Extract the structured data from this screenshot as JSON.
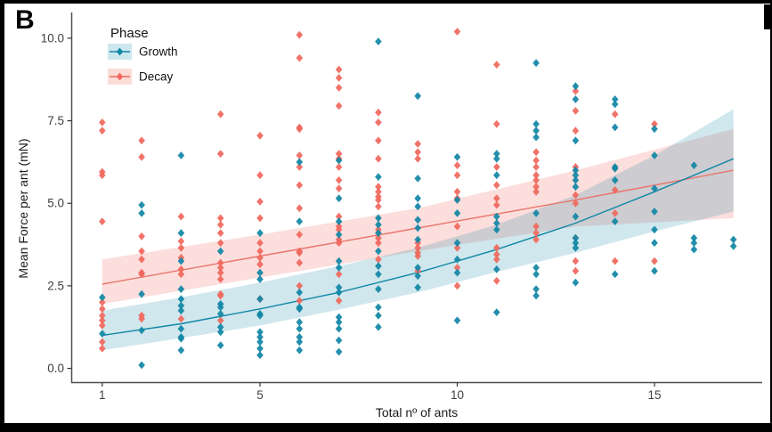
{
  "figure": {
    "panel_label": "B"
  },
  "legend": {
    "title": "Phase",
    "position": "top-left-inside",
    "items": [
      {
        "label": "Growth",
        "color": "#1287A6",
        "swatch_fill": "#CDE7F0"
      },
      {
        "label": "Decay",
        "color": "#F0685E",
        "swatch_fill": "#FBDCD7"
      }
    ]
  },
  "chart_data": {
    "type": "scatter",
    "title": "",
    "xlabel": "Total nº of ants",
    "ylabel": "Mean Force per ant (mN)",
    "x_ticks": [
      1,
      5,
      10,
      15
    ],
    "y_ticks": [
      "0.0",
      "2.5",
      "5.0",
      "7.5",
      "10.0"
    ],
    "y_tick_values": [
      0,
      2.5,
      5,
      7.5,
      10
    ],
    "xlim": [
      0.215,
      17.73
    ],
    "ylim": [
      -0.43,
      10.78
    ],
    "grid": false,
    "point_shape": "filled-diamond",
    "series": [
      {
        "name": "Decay",
        "point_color": "#F0685E",
        "line_color": "#E8756B",
        "band_fill": "rgba(242,104,94,0.22)",
        "trend": {
          "x": [
            1,
            5,
            9,
            13,
            17
          ],
          "y": [
            2.55,
            3.4,
            4.25,
            5.1,
            6.0
          ]
        },
        "band": {
          "x": [
            1,
            5,
            9,
            13,
            17
          ],
          "upper": [
            3.3,
            4.05,
            4.85,
            6.0,
            7.25
          ],
          "lower": [
            1.95,
            2.75,
            3.55,
            4.3,
            4.55
          ]
        },
        "points": [
          [
            1,
            7.45
          ],
          [
            1,
            7.2
          ],
          [
            1,
            5.95
          ],
          [
            1,
            5.85
          ],
          [
            1,
            4.45
          ],
          [
            1,
            2.0
          ],
          [
            1,
            1.8
          ],
          [
            1,
            1.6
          ],
          [
            1,
            1.45
          ],
          [
            1,
            1.3
          ],
          [
            1,
            0.8
          ],
          [
            1,
            0.6
          ],
          [
            2,
            6.9
          ],
          [
            2,
            6.4
          ],
          [
            2,
            4.0
          ],
          [
            2,
            3.55
          ],
          [
            2,
            3.3
          ],
          [
            2,
            2.9
          ],
          [
            2,
            2.85
          ],
          [
            2,
            1.6
          ],
          [
            2,
            1.5
          ],
          [
            3,
            4.6
          ],
          [
            3,
            3.85
          ],
          [
            3,
            3.65
          ],
          [
            3,
            3.35
          ],
          [
            3,
            3.0
          ],
          [
            3,
            2.85
          ],
          [
            3,
            1.5
          ],
          [
            4,
            7.7
          ],
          [
            4,
            6.5
          ],
          [
            4,
            4.55
          ],
          [
            4,
            4.35
          ],
          [
            4,
            4.1
          ],
          [
            4,
            3.8
          ],
          [
            4,
            3.2
          ],
          [
            4,
            3.05
          ],
          [
            4,
            2.9
          ],
          [
            4,
            2.7
          ],
          [
            4,
            2.25
          ],
          [
            4,
            2.2
          ],
          [
            4,
            1.45
          ],
          [
            5,
            7.05
          ],
          [
            5,
            5.85
          ],
          [
            5,
            5.05
          ],
          [
            5,
            4.55
          ],
          [
            5,
            3.8
          ],
          [
            5,
            3.55
          ],
          [
            5,
            3.35
          ],
          [
            5,
            3.15
          ],
          [
            5,
            2.1
          ],
          [
            6,
            10.1
          ],
          [
            6,
            9.4
          ],
          [
            6,
            7.3
          ],
          [
            6,
            7.25
          ],
          [
            6,
            6.45
          ],
          [
            6,
            6.1
          ],
          [
            6,
            5.55
          ],
          [
            6,
            4.85
          ],
          [
            6,
            4.05
          ],
          [
            6,
            3.55
          ],
          [
            6,
            3.5
          ],
          [
            6,
            3.2
          ],
          [
            6,
            2.5
          ],
          [
            6,
            2.05
          ],
          [
            7,
            9.05
          ],
          [
            7,
            8.8
          ],
          [
            7,
            8.5
          ],
          [
            7,
            7.95
          ],
          [
            7,
            6.5
          ],
          [
            7,
            6.35
          ],
          [
            7,
            6.1
          ],
          [
            7,
            5.7
          ],
          [
            7,
            5.45
          ],
          [
            7,
            4.6
          ],
          [
            7,
            4.3
          ],
          [
            7,
            4.2
          ],
          [
            7,
            3.9
          ],
          [
            7,
            3.8
          ],
          [
            7,
            2.85
          ],
          [
            7,
            2.05
          ],
          [
            8,
            7.75
          ],
          [
            8,
            7.45
          ],
          [
            8,
            6.9
          ],
          [
            8,
            6.35
          ],
          [
            8,
            5.5
          ],
          [
            8,
            5.35
          ],
          [
            8,
            5.2
          ],
          [
            8,
            5.1
          ],
          [
            8,
            4.9
          ],
          [
            8,
            4.2
          ],
          [
            8,
            3.95
          ],
          [
            8,
            3.8
          ],
          [
            8,
            3.3
          ],
          [
            9,
            6.8
          ],
          [
            9,
            6.55
          ],
          [
            9,
            6.35
          ],
          [
            9,
            3.8
          ],
          [
            9,
            3.65
          ],
          [
            9,
            3.5
          ],
          [
            9,
            3.4
          ],
          [
            9,
            2.95
          ],
          [
            10,
            10.2
          ],
          [
            10,
            6.15
          ],
          [
            10,
            5.85
          ],
          [
            10,
            5.35
          ],
          [
            10,
            5.15
          ],
          [
            10,
            4.3
          ],
          [
            10,
            3.65
          ],
          [
            10,
            3.05
          ],
          [
            10,
            2.5
          ],
          [
            11,
            9.2
          ],
          [
            11,
            7.4
          ],
          [
            11,
            6.1
          ],
          [
            11,
            5.55
          ],
          [
            11,
            5.15
          ],
          [
            11,
            4.95
          ],
          [
            11,
            3.65
          ],
          [
            11,
            3.45
          ],
          [
            11,
            3.3
          ],
          [
            11,
            2.65
          ],
          [
            12,
            6.55
          ],
          [
            12,
            6.3
          ],
          [
            12,
            6.1
          ],
          [
            12,
            5.85
          ],
          [
            12,
            5.7
          ],
          [
            12,
            5.5
          ],
          [
            12,
            5.35
          ],
          [
            12,
            4.3
          ],
          [
            12,
            4.1
          ],
          [
            12,
            3.9
          ],
          [
            13,
            8.4
          ],
          [
            13,
            7.8
          ],
          [
            13,
            7.2
          ],
          [
            13,
            6.1
          ],
          [
            13,
            5.25
          ],
          [
            13,
            5.0
          ],
          [
            13,
            3.95
          ],
          [
            13,
            3.25
          ],
          [
            13,
            2.95
          ],
          [
            14,
            7.7
          ],
          [
            14,
            5.4
          ],
          [
            14,
            4.7
          ],
          [
            14,
            3.25
          ],
          [
            15,
            7.4
          ],
          [
            15,
            3.25
          ]
        ]
      },
      {
        "name": "Growth",
        "point_color": "#1287A6",
        "line_color": "#0F87A5",
        "band_fill": "rgba(18,134,166,0.20)",
        "trend": {
          "x": [
            1,
            3,
            5,
            7,
            9,
            11,
            13,
            15,
            17
          ],
          "y": [
            1.0,
            1.35,
            1.8,
            2.3,
            2.9,
            3.6,
            4.4,
            5.35,
            6.35
          ]
        },
        "band": {
          "x": [
            1,
            3,
            5,
            7,
            9,
            11,
            13,
            15,
            17
          ],
          "upper": [
            1.75,
            2.15,
            2.6,
            3.1,
            3.65,
            4.35,
            5.25,
            6.45,
            7.85
          ],
          "lower": [
            0.55,
            0.92,
            1.3,
            1.78,
            2.3,
            2.92,
            3.5,
            4.15,
            4.75
          ]
        },
        "points": [
          [
            1,
            2.15
          ],
          [
            1,
            1.05
          ],
          [
            2,
            4.95
          ],
          [
            2,
            4.7
          ],
          [
            2,
            2.25
          ],
          [
            2,
            1.15
          ],
          [
            2,
            0.1
          ],
          [
            3,
            6.45
          ],
          [
            3,
            4.1
          ],
          [
            3,
            3.25
          ],
          [
            3,
            2.4
          ],
          [
            3,
            2.1
          ],
          [
            3,
            1.9
          ],
          [
            3,
            1.75
          ],
          [
            3,
            1.2
          ],
          [
            3,
            0.95
          ],
          [
            3,
            0.9
          ],
          [
            3,
            0.55
          ],
          [
            4,
            3.55
          ],
          [
            4,
            1.95
          ],
          [
            4,
            1.85
          ],
          [
            4,
            1.65
          ],
          [
            4,
            1.25
          ],
          [
            4,
            1.1
          ],
          [
            4,
            0.7
          ],
          [
            5,
            4.1
          ],
          [
            5,
            2.9
          ],
          [
            5,
            2.7
          ],
          [
            5,
            2.1
          ],
          [
            5,
            1.65
          ],
          [
            5,
            1.6
          ],
          [
            5,
            1.1
          ],
          [
            5,
            0.95
          ],
          [
            5,
            0.8
          ],
          [
            5,
            0.6
          ],
          [
            5,
            0.4
          ],
          [
            6,
            6.25
          ],
          [
            6,
            4.45
          ],
          [
            6,
            2.3
          ],
          [
            6,
            1.85
          ],
          [
            6,
            1.8
          ],
          [
            6,
            1.4
          ],
          [
            6,
            1.2
          ],
          [
            6,
            0.95
          ],
          [
            6,
            0.8
          ],
          [
            6,
            0.55
          ],
          [
            7,
            6.3
          ],
          [
            7,
            5.15
          ],
          [
            7,
            4.45
          ],
          [
            7,
            4.05
          ],
          [
            7,
            3.25
          ],
          [
            7,
            3.05
          ],
          [
            7,
            2.45
          ],
          [
            7,
            2.3
          ],
          [
            7,
            1.55
          ],
          [
            7,
            1.4
          ],
          [
            7,
            1.2
          ],
          [
            7,
            0.85
          ],
          [
            7,
            0.5
          ],
          [
            8,
            9.9
          ],
          [
            8,
            5.8
          ],
          [
            8,
            4.55
          ],
          [
            8,
            4.35
          ],
          [
            8,
            4.1
          ],
          [
            8,
            3.55
          ],
          [
            8,
            3.1
          ],
          [
            8,
            2.85
          ],
          [
            8,
            2.4
          ],
          [
            8,
            1.85
          ],
          [
            8,
            1.6
          ],
          [
            8,
            1.25
          ],
          [
            9,
            8.25
          ],
          [
            9,
            5.75
          ],
          [
            9,
            5.15
          ],
          [
            9,
            4.9
          ],
          [
            9,
            4.5
          ],
          [
            9,
            4.25
          ],
          [
            9,
            3.9
          ],
          [
            9,
            3.05
          ],
          [
            9,
            2.8
          ],
          [
            9,
            2.45
          ],
          [
            10,
            6.4
          ],
          [
            10,
            5.1
          ],
          [
            10,
            4.7
          ],
          [
            10,
            3.8
          ],
          [
            10,
            3.3
          ],
          [
            10,
            2.9
          ],
          [
            10,
            1.45
          ],
          [
            11,
            6.5
          ],
          [
            11,
            6.35
          ],
          [
            11,
            5.85
          ],
          [
            11,
            4.6
          ],
          [
            11,
            4.4
          ],
          [
            11,
            4.2
          ],
          [
            11,
            3.0
          ],
          [
            11,
            1.7
          ],
          [
            12,
            9.25
          ],
          [
            12,
            7.4
          ],
          [
            12,
            7.2
          ],
          [
            12,
            7.0
          ],
          [
            12,
            4.7
          ],
          [
            12,
            3.05
          ],
          [
            12,
            2.85
          ],
          [
            12,
            2.4
          ],
          [
            12,
            2.2
          ],
          [
            13,
            8.55
          ],
          [
            13,
            8.15
          ],
          [
            13,
            6.9
          ],
          [
            13,
            6.0
          ],
          [
            13,
            5.85
          ],
          [
            13,
            5.7
          ],
          [
            13,
            5.5
          ],
          [
            13,
            4.6
          ],
          [
            13,
            3.95
          ],
          [
            13,
            3.8
          ],
          [
            13,
            3.65
          ],
          [
            13,
            2.6
          ],
          [
            14,
            8.15
          ],
          [
            14,
            8.0
          ],
          [
            14,
            7.3
          ],
          [
            14,
            6.1
          ],
          [
            14,
            6.05
          ],
          [
            14,
            5.7
          ],
          [
            14,
            4.45
          ],
          [
            14,
            2.85
          ],
          [
            15,
            7.25
          ],
          [
            15,
            6.45
          ],
          [
            15,
            5.45
          ],
          [
            15,
            4.75
          ],
          [
            15,
            4.2
          ],
          [
            15,
            3.8
          ],
          [
            15,
            2.95
          ],
          [
            16,
            6.15
          ],
          [
            16,
            3.95
          ],
          [
            16,
            3.8
          ],
          [
            16,
            3.6
          ],
          [
            17,
            3.9
          ],
          [
            17,
            3.7
          ]
        ]
      }
    ]
  }
}
